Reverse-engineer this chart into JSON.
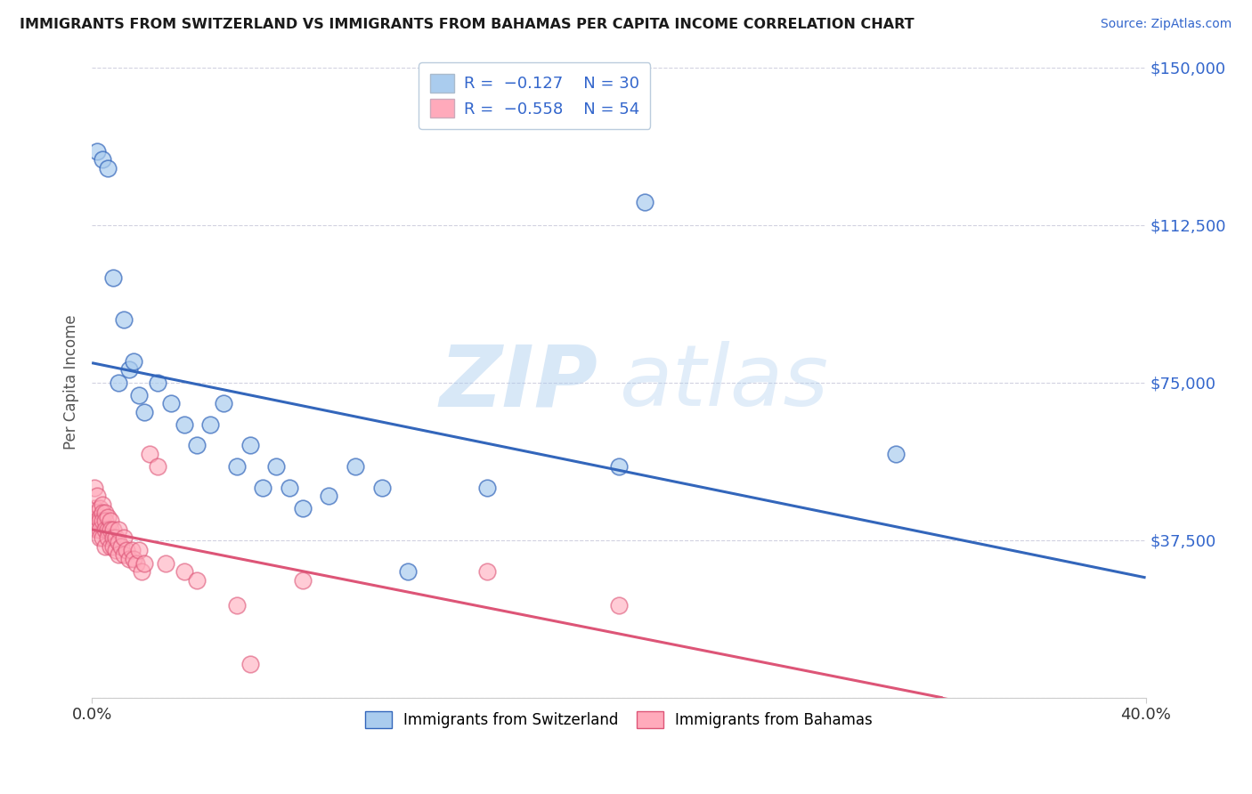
{
  "title": "IMMIGRANTS FROM SWITZERLAND VS IMMIGRANTS FROM BAHAMAS PER CAPITA INCOME CORRELATION CHART",
  "source": "Source: ZipAtlas.com",
  "ylabel": "Per Capita Income",
  "xlim": [
    0.0,
    0.4
  ],
  "ylim": [
    0,
    150000
  ],
  "yticks": [
    0,
    37500,
    75000,
    112500,
    150000
  ],
  "ytick_labels": [
    "",
    "$37,500",
    "$75,000",
    "$112,500",
    "$150,000"
  ],
  "xtick_left_label": "0.0%",
  "xtick_right_label": "40.0%",
  "legend_r1": "-0.127",
  "legend_n1": "30",
  "legend_r2": "-0.558",
  "legend_n2": "54",
  "color_swiss": "#AACCEE",
  "color_bahamas": "#FFAABB",
  "line_color_swiss": "#3366BB",
  "line_color_bahamas": "#DD5577",
  "background_color": "#FFFFFF",
  "swiss_x": [
    0.002,
    0.004,
    0.006,
    0.008,
    0.01,
    0.012,
    0.014,
    0.016,
    0.018,
    0.02,
    0.025,
    0.03,
    0.035,
    0.04,
    0.045,
    0.05,
    0.055,
    0.06,
    0.065,
    0.07,
    0.075,
    0.08,
    0.09,
    0.1,
    0.11,
    0.12,
    0.15,
    0.2,
    0.21,
    0.305
  ],
  "swiss_y": [
    130000,
    128000,
    126000,
    100000,
    75000,
    90000,
    78000,
    80000,
    72000,
    68000,
    75000,
    70000,
    65000,
    60000,
    65000,
    70000,
    55000,
    60000,
    50000,
    55000,
    50000,
    45000,
    48000,
    55000,
    50000,
    30000,
    50000,
    55000,
    118000,
    58000
  ],
  "bahamas_x": [
    0.001,
    0.001,
    0.002,
    0.002,
    0.002,
    0.002,
    0.003,
    0.003,
    0.003,
    0.003,
    0.003,
    0.004,
    0.004,
    0.004,
    0.004,
    0.005,
    0.005,
    0.005,
    0.005,
    0.006,
    0.006,
    0.006,
    0.007,
    0.007,
    0.007,
    0.008,
    0.008,
    0.008,
    0.009,
    0.009,
    0.01,
    0.01,
    0.01,
    0.011,
    0.012,
    0.012,
    0.013,
    0.014,
    0.015,
    0.016,
    0.017,
    0.018,
    0.019,
    0.02,
    0.022,
    0.025,
    0.028,
    0.035,
    0.04,
    0.055,
    0.06,
    0.08,
    0.15,
    0.2
  ],
  "bahamas_y": [
    50000,
    45000,
    48000,
    44000,
    42000,
    40000,
    45000,
    43000,
    42000,
    40000,
    38000,
    46000,
    44000,
    42000,
    38000,
    44000,
    42000,
    40000,
    36000,
    43000,
    40000,
    38000,
    42000,
    40000,
    36000,
    40000,
    38000,
    36000,
    38000,
    35000,
    40000,
    37000,
    34000,
    36000,
    38000,
    34000,
    35000,
    33000,
    35000,
    33000,
    32000,
    35000,
    30000,
    32000,
    58000,
    55000,
    32000,
    30000,
    28000,
    22000,
    8000,
    28000,
    30000,
    22000
  ]
}
